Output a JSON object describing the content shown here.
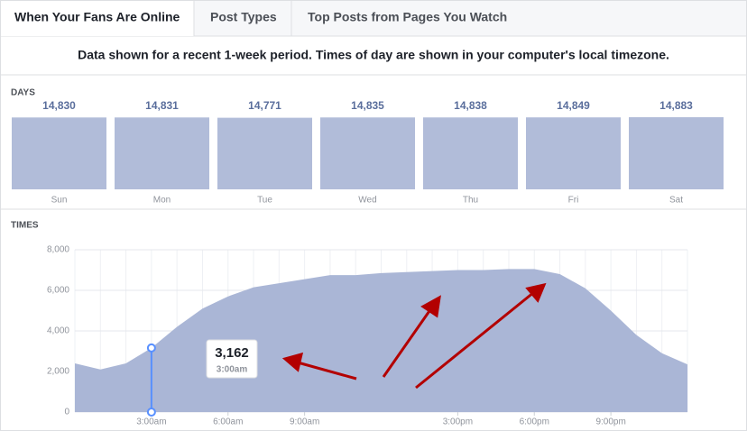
{
  "tabs": [
    "When Your Fans Are Online",
    "Post Types",
    "Top Posts from Pages You Watch"
  ],
  "notice": "Data shown for a recent 1-week period. Times of day are shown in your computer's local timezone.",
  "chart_data": [
    {
      "type": "bar",
      "title": "DAYS",
      "categories": [
        "Sun",
        "Mon",
        "Tue",
        "Wed",
        "Thu",
        "Fri",
        "Sat"
      ],
      "values": [
        14830,
        14831,
        14771,
        14835,
        14838,
        14849,
        14883
      ],
      "value_labels": [
        "14,830",
        "14,831",
        "14,771",
        "14,835",
        "14,838",
        "14,849",
        "14,883"
      ],
      "color": "#b1bcd9"
    },
    {
      "type": "area",
      "title": "TIMES",
      "x": [
        0,
        1,
        2,
        3,
        4,
        5,
        6,
        7,
        8,
        9,
        10,
        11,
        12,
        13,
        14,
        15,
        16,
        17,
        18,
        19,
        20,
        21,
        22,
        23,
        24
      ],
      "values": [
        2400,
        2100,
        2400,
        3162,
        4200,
        5100,
        5700,
        6150,
        6350,
        6550,
        6750,
        6750,
        6850,
        6900,
        6950,
        7000,
        7000,
        7050,
        7050,
        6800,
        6100,
        5000,
        3800,
        2900,
        2350
      ],
      "color": "#aab6d6",
      "xlim": [
        0,
        24
      ],
      "xticks": [
        {
          "value": 3,
          "label": "3:00am"
        },
        {
          "value": 6,
          "label": "6:00am"
        },
        {
          "value": 9,
          "label": "9:00am"
        },
        {
          "value": 15,
          "label": "3:00pm"
        },
        {
          "value": 18,
          "label": "6:00pm"
        },
        {
          "value": 21,
          "label": "9:00pm"
        }
      ],
      "ylim": [
        0,
        8000
      ],
      "yticks": [
        0,
        {
          "value": 2000,
          "label": "2,000"
        },
        {
          "value": 4000,
          "label": "4,000"
        },
        {
          "value": 6000,
          "label": "6,000"
        },
        {
          "value": 8000,
          "label": "8,000"
        }
      ],
      "grid": true,
      "tooltip": {
        "x": 3,
        "label": "3,162",
        "time": "3:00am"
      }
    }
  ]
}
